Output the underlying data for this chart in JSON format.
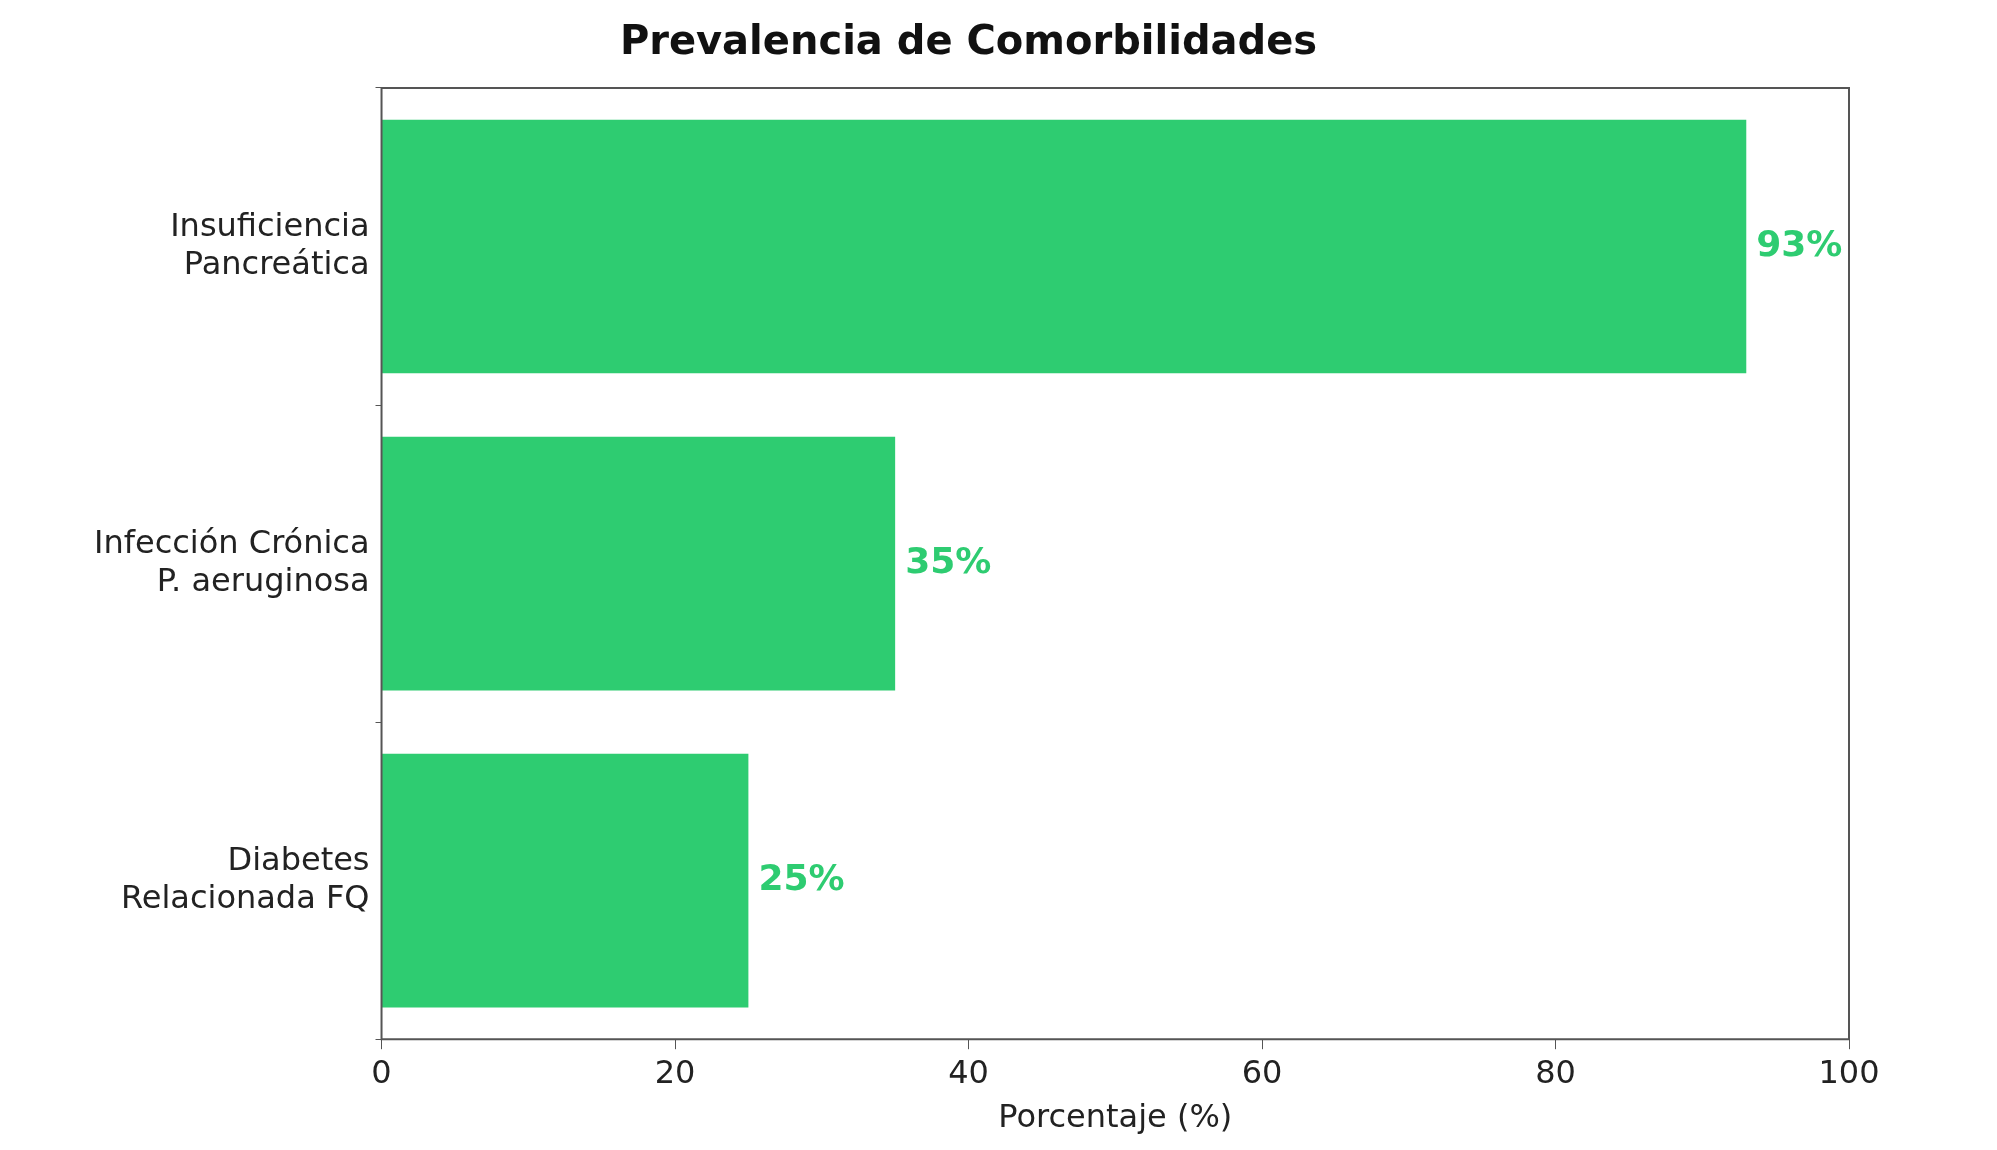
{
  "chart_data": {
    "type": "bar",
    "orientation": "horizontal",
    "title": "Prevalencia de Comorbilidades",
    "xlabel": "Porcentaje (%)",
    "categories": [
      "Insuficiencia\nPancreática",
      "Infección Crónica\nP. aeruginosa",
      "Diabetes\nRelacionada FQ"
    ],
    "values": [
      93,
      35,
      25
    ],
    "value_labels": [
      "93%",
      "35%",
      "25%"
    ],
    "color": "#2ecc71",
    "xlim": [
      0,
      100
    ],
    "xticks": [
      0,
      20,
      40,
      60,
      80,
      100
    ],
    "grid": false,
    "legend": false
  }
}
